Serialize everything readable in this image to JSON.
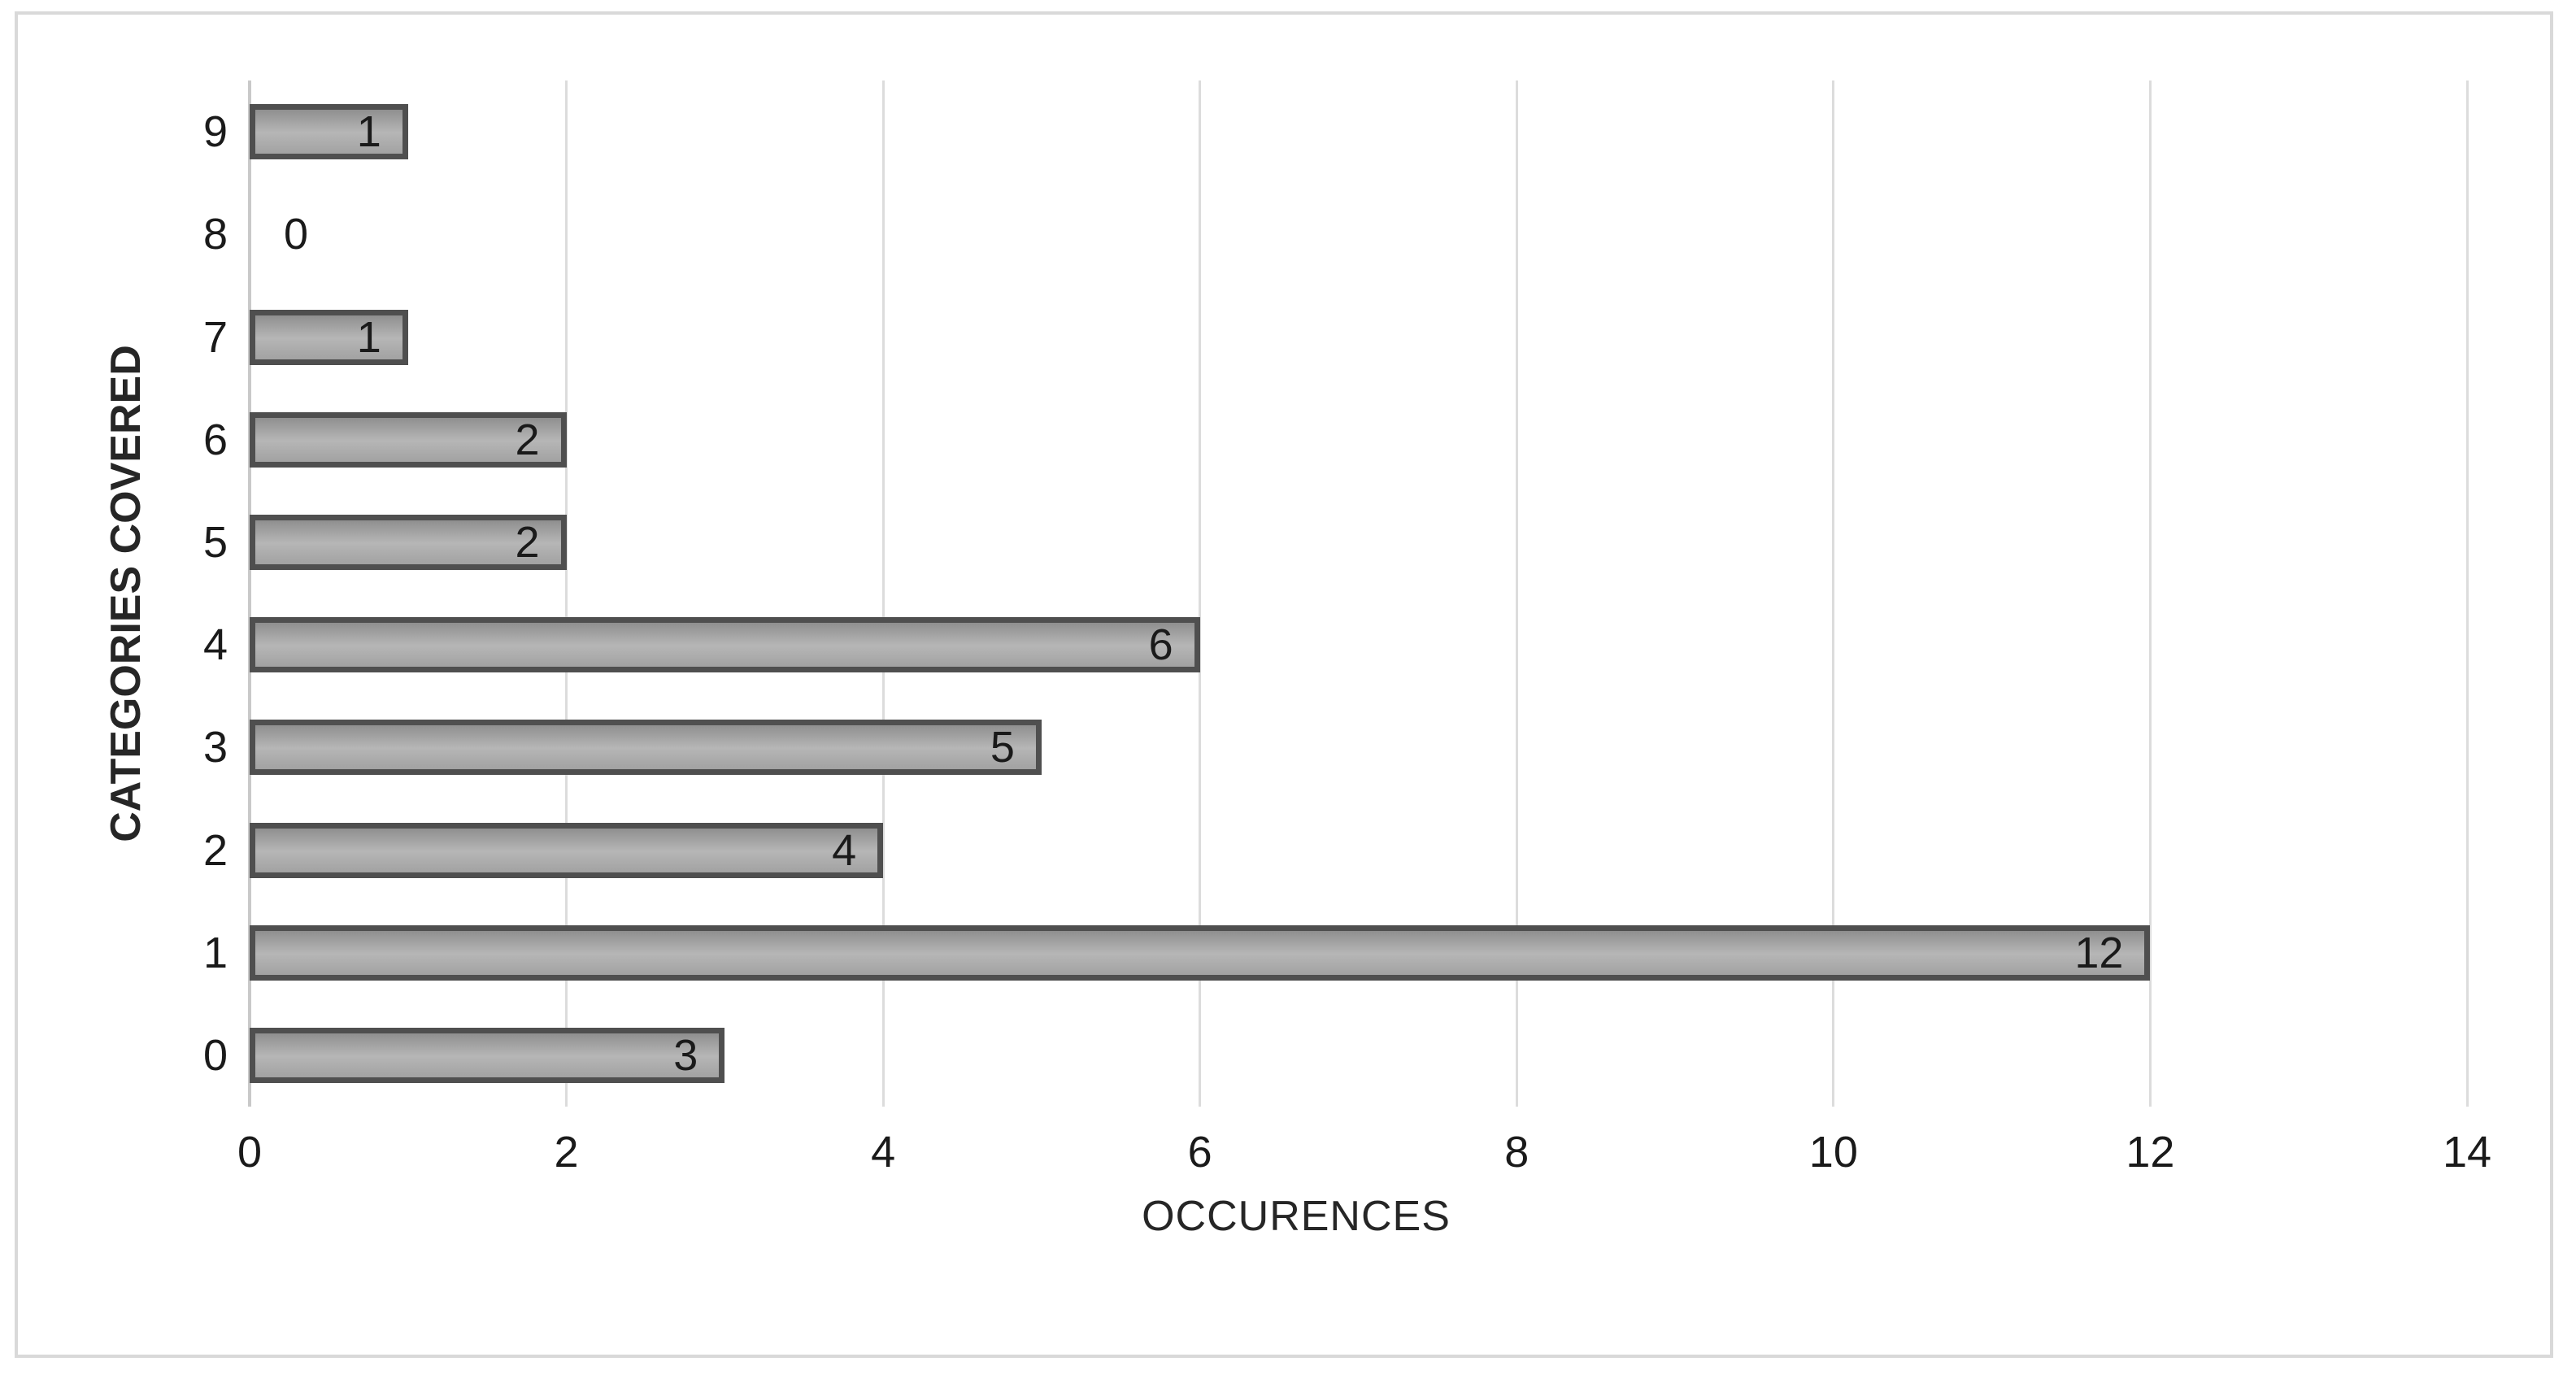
{
  "chart_data": {
    "type": "bar",
    "orientation": "horizontal",
    "title": "",
    "xlabel": "OCCURENCES",
    "ylabel": "CATEGORIES COVERED",
    "categories": [
      "9",
      "8",
      "7",
      "6",
      "5",
      "4",
      "3",
      "2",
      "1",
      "0"
    ],
    "values": [
      1,
      0,
      1,
      2,
      2,
      6,
      5,
      4,
      12,
      3
    ],
    "data_labels": [
      "1",
      "0",
      "1",
      "2",
      "2",
      "6",
      "5",
      "4",
      "12",
      "3"
    ],
    "x_ticks": [
      "0",
      "2",
      "4",
      "6",
      "8",
      "10",
      "12",
      "14"
    ],
    "x_tick_values": [
      0,
      2,
      4,
      6,
      8,
      10,
      12,
      14
    ],
    "xlim": [
      0,
      14
    ],
    "grid": "vertical-gridlines-on",
    "legend": "none",
    "data_label_position": "inside-end",
    "colors": {
      "bar_fill": "#a6a6a6",
      "bar_border": "#4f4f4f",
      "gridline": "#dcdcdc",
      "axis_line": "#c9c9c9",
      "text": "#1a1a1a",
      "chart_border": "#d9d9d9",
      "background": "#ffffff"
    }
  }
}
